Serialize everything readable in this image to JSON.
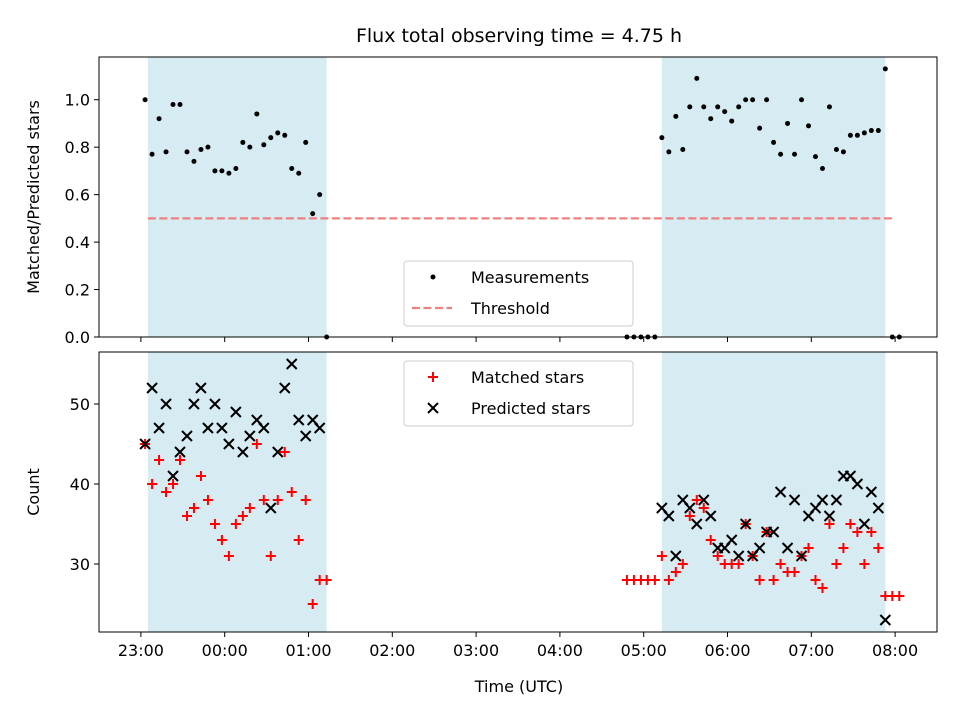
{
  "chart_data": {
    "title": "Flux total observing time = 4.75 h",
    "xlabel": "Time (UTC)",
    "xticks": [
      "23:00",
      "00:00",
      "01:00",
      "02:00",
      "03:00",
      "04:00",
      "05:00",
      "06:00",
      "07:00",
      "08:00"
    ],
    "xlim_hours": [
      -0.5,
      9.5
    ],
    "colors": {
      "span": "#add8e6",
      "threshold": "#f08080",
      "measurement": "#000000",
      "matched": "#ff0000",
      "predicted": "#000000"
    },
    "shaded_intervals": [
      [
        "23:05",
        "01:13"
      ],
      [
        "05:13",
        "07:53"
      ]
    ],
    "panels": [
      {
        "type": "scatter",
        "ylabel": "Matched/Predicted stars",
        "ylim": [
          0,
          1.18
        ],
        "yticks": [
          "0.0",
          "0.2",
          "0.4",
          "0.6",
          "0.8",
          "1.0"
        ],
        "legend": {
          "placement": "lower-center",
          "entries": [
            "Measurements",
            "Threshold"
          ]
        },
        "threshold": {
          "name": "Threshold",
          "value": 0.5,
          "x_range": [
            "23:05",
            "07:59"
          ]
        },
        "series": [
          {
            "name": "Measurements",
            "points": [
              [
                "23:03",
                1.0
              ],
              [
                "23:08",
                0.77
              ],
              [
                "23:13",
                0.92
              ],
              [
                "23:18",
                0.78
              ],
              [
                "23:23",
                0.98
              ],
              [
                "23:28",
                0.98
              ],
              [
                "23:33",
                0.78
              ],
              [
                "23:38",
                0.74
              ],
              [
                "23:43",
                0.79
              ],
              [
                "23:48",
                0.8
              ],
              [
                "23:53",
                0.7
              ],
              [
                "23:58",
                0.7
              ],
              [
                "00:03",
                0.69
              ],
              [
                "00:08",
                0.71
              ],
              [
                "00:13",
                0.82
              ],
              [
                "00:18",
                0.8
              ],
              [
                "00:23",
                0.94
              ],
              [
                "00:28",
                0.81
              ],
              [
                "00:33",
                0.84
              ],
              [
                "00:38",
                0.86
              ],
              [
                "00:43",
                0.85
              ],
              [
                "00:48",
                0.71
              ],
              [
                "00:53",
                0.69
              ],
              [
                "00:58",
                0.82
              ],
              [
                "01:03",
                0.52
              ],
              [
                "01:08",
                0.6
              ],
              [
                "01:13",
                0.0
              ],
              [
                "04:48",
                0.0
              ],
              [
                "04:53",
                0.0
              ],
              [
                "04:58",
                0.0
              ],
              [
                "05:03",
                0.0
              ],
              [
                "05:08",
                0.0
              ],
              [
                "05:13",
                0.84
              ],
              [
                "05:18",
                0.78
              ],
              [
                "05:23",
                0.93
              ],
              [
                "05:28",
                0.79
              ],
              [
                "05:33",
                0.97
              ],
              [
                "05:38",
                1.09
              ],
              [
                "05:43",
                0.97
              ],
              [
                "05:48",
                0.92
              ],
              [
                "05:53",
                0.97
              ],
              [
                "05:58",
                0.95
              ],
              [
                "06:03",
                0.91
              ],
              [
                "06:08",
                0.97
              ],
              [
                "06:13",
                1.0
              ],
              [
                "06:18",
                1.0
              ],
              [
                "06:23",
                0.88
              ],
              [
                "06:28",
                1.0
              ],
              [
                "06:33",
                0.82
              ],
              [
                "06:38",
                0.77
              ],
              [
                "06:43",
                0.9
              ],
              [
                "06:48",
                0.77
              ],
              [
                "06:53",
                1.0
              ],
              [
                "06:58",
                0.89
              ],
              [
                "07:03",
                0.76
              ],
              [
                "07:08",
                0.71
              ],
              [
                "07:13",
                0.97
              ],
              [
                "07:18",
                0.79
              ],
              [
                "07:23",
                0.78
              ],
              [
                "07:28",
                0.85
              ],
              [
                "07:33",
                0.85
              ],
              [
                "07:38",
                0.86
              ],
              [
                "07:43",
                0.87
              ],
              [
                "07:48",
                0.87
              ],
              [
                "07:53",
                1.13
              ],
              [
                "07:58",
                0.0
              ],
              [
                "08:03",
                0.0
              ]
            ]
          }
        ]
      },
      {
        "type": "scatter",
        "ylabel": "Count",
        "ylim": [
          21.5,
          56.5
        ],
        "yticks": [
          "30",
          "40",
          "50"
        ],
        "legend": {
          "placement": "upper-center",
          "entries": [
            "Matched stars",
            "Predicted stars"
          ]
        },
        "series": [
          {
            "name": "Matched stars",
            "points": [
              [
                "23:03",
                45
              ],
              [
                "23:08",
                40
              ],
              [
                "23:13",
                43
              ],
              [
                "23:18",
                39
              ],
              [
                "23:23",
                40
              ],
              [
                "23:28",
                43
              ],
              [
                "23:33",
                36
              ],
              [
                "23:38",
                37
              ],
              [
                "23:43",
                41
              ],
              [
                "23:48",
                38
              ],
              [
                "23:53",
                35
              ],
              [
                "23:58",
                33
              ],
              [
                "00:03",
                31
              ],
              [
                "00:08",
                35
              ],
              [
                "00:13",
                36
              ],
              [
                "00:18",
                37
              ],
              [
                "00:23",
                45
              ],
              [
                "00:28",
                38
              ],
              [
                "00:33",
                31
              ],
              [
                "00:38",
                38
              ],
              [
                "00:43",
                44
              ],
              [
                "00:48",
                39
              ],
              [
                "00:53",
                33
              ],
              [
                "00:58",
                38
              ],
              [
                "01:03",
                25
              ],
              [
                "01:08",
                28
              ],
              [
                "01:13",
                28
              ],
              [
                "04:48",
                28
              ],
              [
                "04:53",
                28
              ],
              [
                "04:58",
                28
              ],
              [
                "05:03",
                28
              ],
              [
                "05:08",
                28
              ],
              [
                "05:13",
                31
              ],
              [
                "05:18",
                28
              ],
              [
                "05:23",
                29
              ],
              [
                "05:28",
                30
              ],
              [
                "05:33",
                36
              ],
              [
                "05:38",
                38
              ],
              [
                "05:43",
                37
              ],
              [
                "05:48",
                33
              ],
              [
                "05:53",
                31
              ],
              [
                "05:58",
                30
              ],
              [
                "06:03",
                30
              ],
              [
                "06:08",
                30
              ],
              [
                "06:13",
                35
              ],
              [
                "06:18",
                31
              ],
              [
                "06:23",
                28
              ],
              [
                "06:28",
                34
              ],
              [
                "06:33",
                28
              ],
              [
                "06:38",
                30
              ],
              [
                "06:43",
                29
              ],
              [
                "06:48",
                29
              ],
              [
                "06:53",
                31
              ],
              [
                "06:58",
                32
              ],
              [
                "07:03",
                28
              ],
              [
                "07:08",
                27
              ],
              [
                "07:13",
                35
              ],
              [
                "07:18",
                30
              ],
              [
                "07:23",
                32
              ],
              [
                "07:28",
                35
              ],
              [
                "07:33",
                34
              ],
              [
                "07:38",
                30
              ],
              [
                "07:43",
                34
              ],
              [
                "07:48",
                32
              ],
              [
                "07:53",
                26
              ],
              [
                "07:58",
                26
              ],
              [
                "08:03",
                26
              ]
            ]
          },
          {
            "name": "Predicted stars",
            "points": [
              [
                "23:03",
                45
              ],
              [
                "23:08",
                52
              ],
              [
                "23:13",
                47
              ],
              [
                "23:18",
                50
              ],
              [
                "23:23",
                41
              ],
              [
                "23:28",
                44
              ],
              [
                "23:33",
                46
              ],
              [
                "23:38",
                50
              ],
              [
                "23:43",
                52
              ],
              [
                "23:48",
                47
              ],
              [
                "23:53",
                50
              ],
              [
                "23:58",
                47
              ],
              [
                "00:03",
                45
              ],
              [
                "00:08",
                49
              ],
              [
                "00:13",
                44
              ],
              [
                "00:18",
                46
              ],
              [
                "00:23",
                48
              ],
              [
                "00:28",
                47
              ],
              [
                "00:33",
                37
              ],
              [
                "00:38",
                44
              ],
              [
                "00:43",
                52
              ],
              [
                "00:48",
                55
              ],
              [
                "00:53",
                48
              ],
              [
                "00:58",
                46
              ],
              [
                "01:03",
                48
              ],
              [
                "01:08",
                47
              ],
              [
                "05:13",
                37
              ],
              [
                "05:18",
                36
              ],
              [
                "05:23",
                31
              ],
              [
                "05:28",
                38
              ],
              [
                "05:33",
                37
              ],
              [
                "05:38",
                35
              ],
              [
                "05:43",
                38
              ],
              [
                "05:48",
                36
              ],
              [
                "05:53",
                32
              ],
              [
                "05:58",
                32
              ],
              [
                "06:03",
                33
              ],
              [
                "06:08",
                31
              ],
              [
                "06:13",
                35
              ],
              [
                "06:18",
                31
              ],
              [
                "06:23",
                32
              ],
              [
                "06:28",
                34
              ],
              [
                "06:33",
                34
              ],
              [
                "06:38",
                39
              ],
              [
                "06:43",
                32
              ],
              [
                "06:48",
                38
              ],
              [
                "06:53",
                31
              ],
              [
                "06:58",
                36
              ],
              [
                "07:03",
                37
              ],
              [
                "07:08",
                38
              ],
              [
                "07:13",
                36
              ],
              [
                "07:18",
                38
              ],
              [
                "07:23",
                41
              ],
              [
                "07:28",
                41
              ],
              [
                "07:33",
                40
              ],
              [
                "07:38",
                35
              ],
              [
                "07:43",
                39
              ],
              [
                "07:48",
                37
              ],
              [
                "07:53",
                23
              ]
            ]
          }
        ]
      }
    ]
  }
}
